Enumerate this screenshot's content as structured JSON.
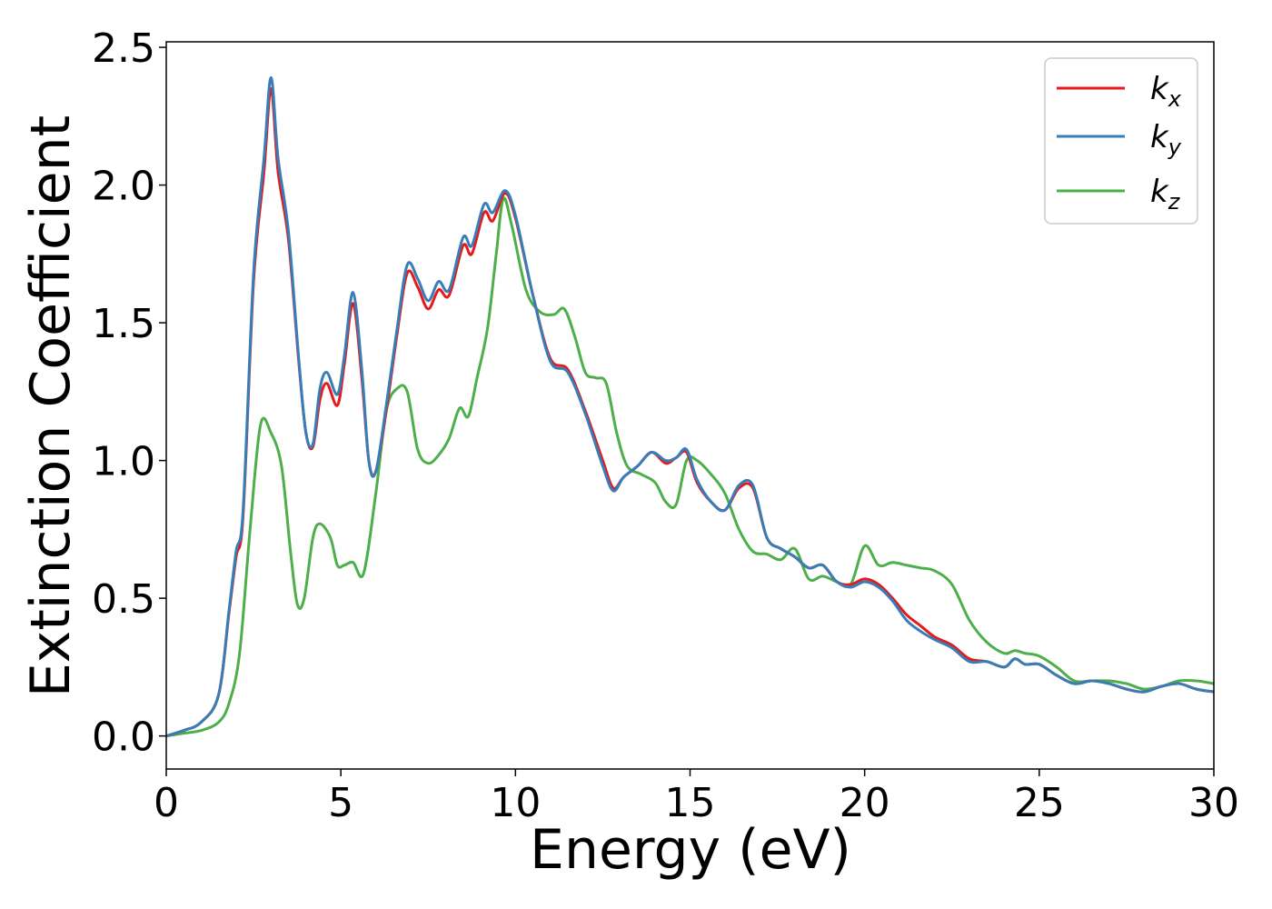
{
  "chart_data": {
    "type": "line",
    "xlabel": "Energy (eV)",
    "ylabel": "Extinction Coefficient",
    "xlim": [
      0,
      30
    ],
    "ylim": [
      -0.12,
      2.52
    ],
    "xticks": [
      "0",
      "5",
      "10",
      "15",
      "20",
      "25",
      "30"
    ],
    "yticks": [
      "0.0",
      "0.5",
      "1.0",
      "1.5",
      "2.0",
      "2.5"
    ],
    "grid": false,
    "legend": {
      "placement": "top-right"
    },
    "series": [
      {
        "name": "k_x",
        "label_main": "k",
        "label_sub": "x",
        "color": "#e41a1c",
        "x": [
          0,
          0.5,
          1,
          1.5,
          1.8,
          2.0,
          2.2,
          2.5,
          2.8,
          3.0,
          3.2,
          3.5,
          3.8,
          4.0,
          4.2,
          4.4,
          4.6,
          4.9,
          5.1,
          5.35,
          5.6,
          5.8,
          6.0,
          6.3,
          6.6,
          6.9,
          7.2,
          7.5,
          7.8,
          8.1,
          8.5,
          8.75,
          9.1,
          9.35,
          9.7,
          10.0,
          10.5,
          11.0,
          11.5,
          12.0,
          12.5,
          12.8,
          13.1,
          13.5,
          13.9,
          14.3,
          14.6,
          14.9,
          15.2,
          15.6,
          16.0,
          16.4,
          16.8,
          17.2,
          17.6,
          18.0,
          18.4,
          18.8,
          19.2,
          19.6,
          20.0,
          20.4,
          20.8,
          21.2,
          21.6,
          22.0,
          22.5,
          23.0,
          23.5,
          24.0,
          24.3,
          24.6,
          25.0,
          25.5,
          26.0,
          26.5,
          27.0,
          27.5,
          28.0,
          28.5,
          29.0,
          29.5,
          30.0
        ],
        "values": [
          0,
          0.02,
          0.05,
          0.15,
          0.45,
          0.65,
          0.8,
          1.65,
          2.05,
          2.35,
          2.05,
          1.8,
          1.35,
          1.1,
          1.05,
          1.22,
          1.28,
          1.2,
          1.35,
          1.57,
          1.3,
          1.0,
          0.96,
          1.18,
          1.45,
          1.68,
          1.63,
          1.55,
          1.62,
          1.6,
          1.78,
          1.75,
          1.9,
          1.87,
          1.97,
          1.88,
          1.6,
          1.37,
          1.33,
          1.18,
          1.0,
          0.9,
          0.94,
          0.98,
          1.03,
          0.99,
          1.01,
          1.03,
          0.92,
          0.85,
          0.82,
          0.9,
          0.9,
          0.72,
          0.68,
          0.65,
          0.61,
          0.62,
          0.56,
          0.55,
          0.57,
          0.55,
          0.5,
          0.44,
          0.4,
          0.36,
          0.33,
          0.28,
          0.27,
          0.25,
          0.28,
          0.26,
          0.26,
          0.22,
          0.19,
          0.2,
          0.19,
          0.17,
          0.16,
          0.18,
          0.19,
          0.17,
          0.16
        ]
      },
      {
        "name": "k_y",
        "label_main": "k",
        "label_sub": "y",
        "color": "#377eb8",
        "x": [
          0,
          0.5,
          1,
          1.5,
          1.8,
          2.0,
          2.2,
          2.5,
          2.8,
          3.0,
          3.2,
          3.5,
          3.8,
          4.0,
          4.2,
          4.4,
          4.6,
          4.9,
          5.1,
          5.35,
          5.6,
          5.8,
          6.0,
          6.3,
          6.6,
          6.9,
          7.2,
          7.5,
          7.8,
          8.1,
          8.5,
          8.75,
          9.1,
          9.35,
          9.7,
          10.0,
          10.5,
          11.0,
          11.5,
          12.0,
          12.5,
          12.8,
          13.1,
          13.5,
          13.9,
          14.3,
          14.6,
          14.9,
          15.2,
          15.6,
          16.0,
          16.4,
          16.8,
          17.2,
          17.6,
          18.0,
          18.4,
          18.8,
          19.2,
          19.6,
          20.0,
          20.4,
          20.8,
          21.2,
          21.6,
          22.0,
          22.5,
          23.0,
          23.5,
          24.0,
          24.3,
          24.6,
          25.0,
          25.5,
          26.0,
          26.5,
          27.0,
          27.5,
          28.0,
          28.5,
          29.0,
          29.5,
          30.0
        ],
        "values": [
          0,
          0.02,
          0.05,
          0.15,
          0.46,
          0.67,
          0.82,
          1.68,
          2.1,
          2.39,
          2.1,
          1.83,
          1.36,
          1.1,
          1.06,
          1.26,
          1.32,
          1.24,
          1.38,
          1.61,
          1.33,
          1.0,
          0.96,
          1.2,
          1.47,
          1.71,
          1.66,
          1.58,
          1.65,
          1.62,
          1.81,
          1.78,
          1.93,
          1.9,
          1.98,
          1.89,
          1.6,
          1.36,
          1.32,
          1.17,
          0.98,
          0.89,
          0.94,
          0.98,
          1.03,
          1.0,
          1.01,
          1.04,
          0.93,
          0.85,
          0.82,
          0.91,
          0.91,
          0.72,
          0.68,
          0.65,
          0.61,
          0.62,
          0.56,
          0.54,
          0.56,
          0.54,
          0.49,
          0.42,
          0.38,
          0.35,
          0.32,
          0.27,
          0.27,
          0.25,
          0.28,
          0.26,
          0.26,
          0.22,
          0.19,
          0.2,
          0.19,
          0.17,
          0.16,
          0.18,
          0.19,
          0.17,
          0.16
        ]
      },
      {
        "name": "k_z",
        "label_main": "k",
        "label_sub": "z",
        "color": "#4daf4a",
        "x": [
          0,
          0.5,
          1,
          1.5,
          1.8,
          2.1,
          2.4,
          2.7,
          3.0,
          3.3,
          3.55,
          3.75,
          3.95,
          4.2,
          4.4,
          4.7,
          4.9,
          5.1,
          5.35,
          5.65,
          6.0,
          6.3,
          6.6,
          6.9,
          7.2,
          7.5,
          7.8,
          8.1,
          8.4,
          8.65,
          8.9,
          9.2,
          9.45,
          9.65,
          9.9,
          10.3,
          10.7,
          11.1,
          11.4,
          11.7,
          12.0,
          12.3,
          12.6,
          12.9,
          13.2,
          13.6,
          14.0,
          14.3,
          14.6,
          14.9,
          15.2,
          15.6,
          16.0,
          16.4,
          16.8,
          17.2,
          17.6,
          18.0,
          18.4,
          18.8,
          19.2,
          19.6,
          20.0,
          20.4,
          20.8,
          21.2,
          21.6,
          22.0,
          22.5,
          23.0,
          23.5,
          24.0,
          24.3,
          24.6,
          25.0,
          25.5,
          26.0,
          26.5,
          27.0,
          27.5,
          28.0,
          28.5,
          29.0,
          29.5,
          30.0
        ],
        "values": [
          0,
          0.01,
          0.02,
          0.05,
          0.12,
          0.3,
          0.75,
          1.13,
          1.1,
          0.98,
          0.68,
          0.48,
          0.5,
          0.72,
          0.77,
          0.72,
          0.62,
          0.62,
          0.63,
          0.59,
          0.88,
          1.18,
          1.26,
          1.25,
          1.04,
          0.99,
          1.02,
          1.08,
          1.19,
          1.16,
          1.3,
          1.48,
          1.75,
          1.95,
          1.85,
          1.62,
          1.54,
          1.53,
          1.55,
          1.45,
          1.32,
          1.3,
          1.28,
          1.1,
          0.98,
          0.95,
          0.92,
          0.85,
          0.84,
          1.0,
          1.0,
          0.95,
          0.88,
          0.75,
          0.67,
          0.66,
          0.64,
          0.68,
          0.57,
          0.58,
          0.56,
          0.55,
          0.69,
          0.62,
          0.63,
          0.62,
          0.61,
          0.6,
          0.55,
          0.42,
          0.34,
          0.3,
          0.31,
          0.3,
          0.29,
          0.25,
          0.2,
          0.2,
          0.2,
          0.19,
          0.17,
          0.18,
          0.2,
          0.2,
          0.19
        ]
      }
    ]
  }
}
